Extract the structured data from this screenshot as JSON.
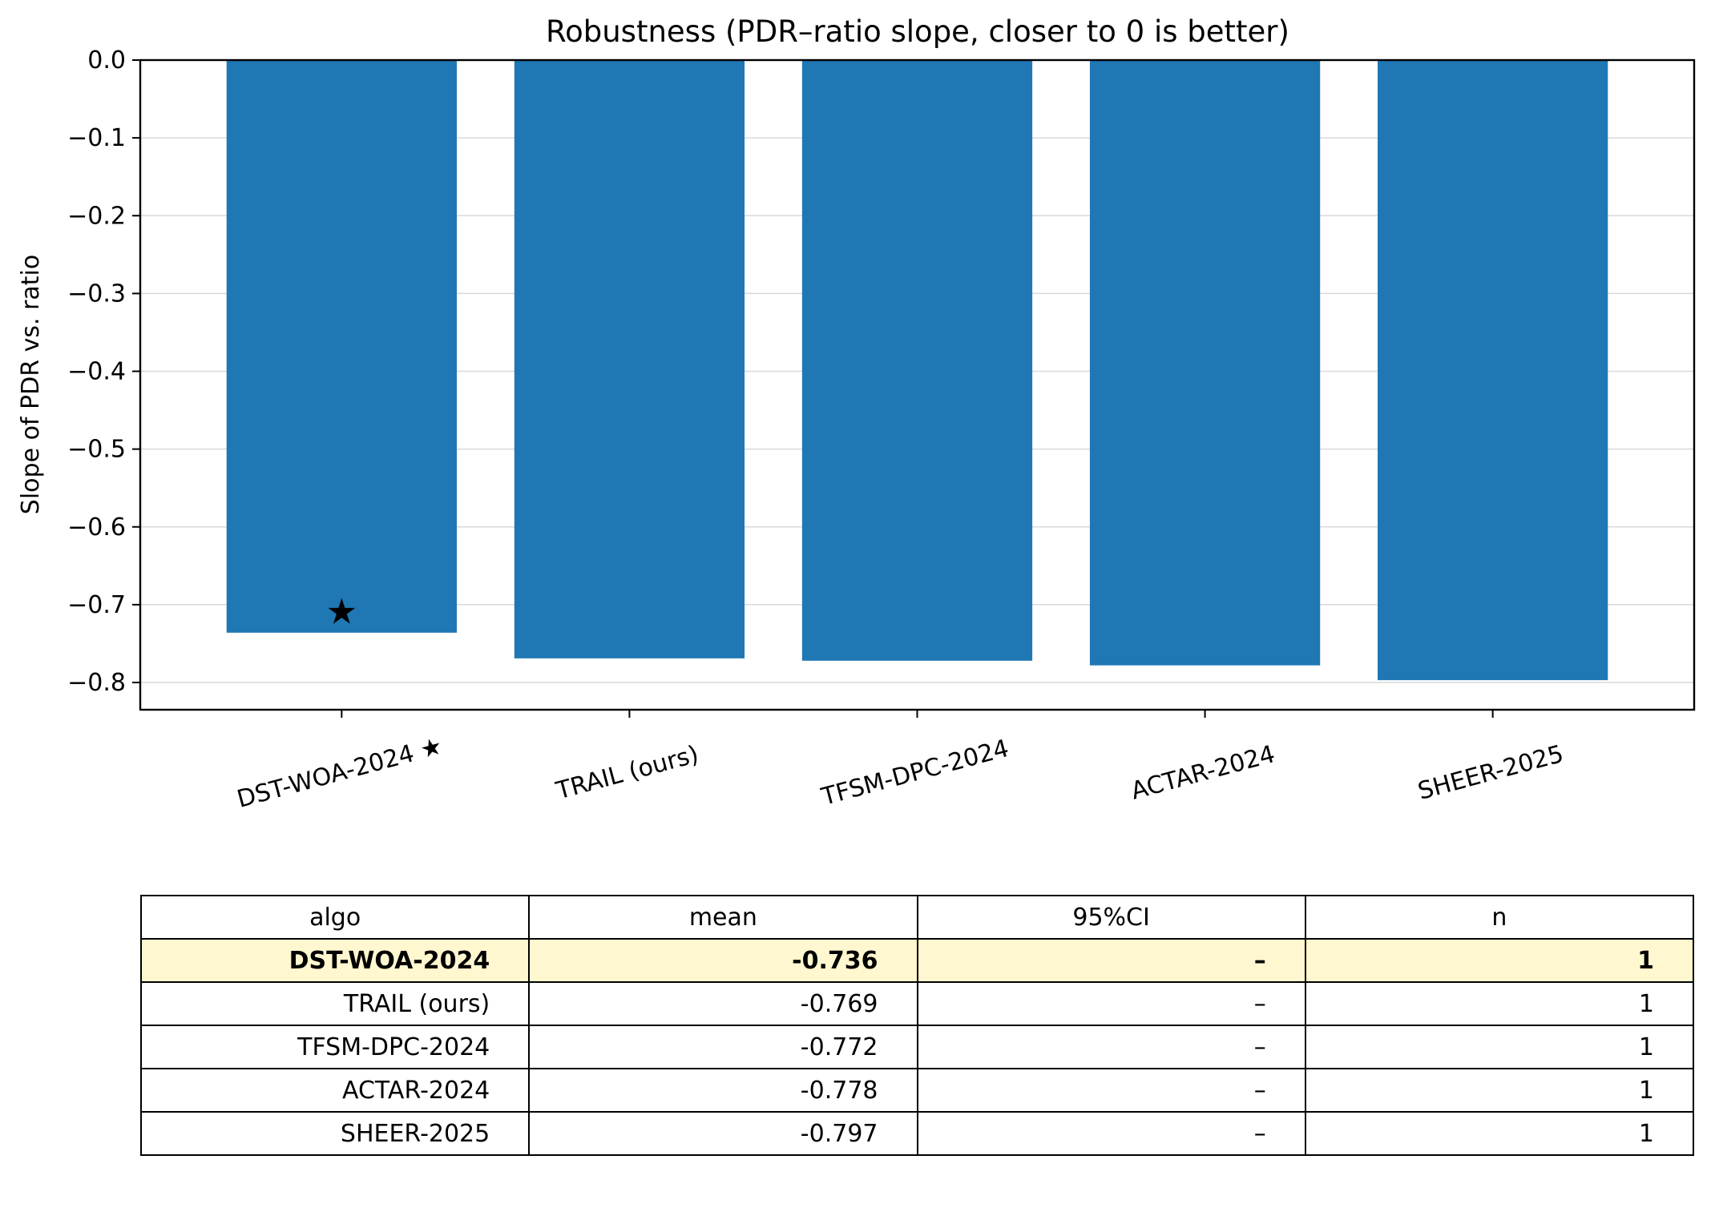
{
  "chart_data": {
    "type": "bar",
    "title": "Robustness (PDR–ratio slope, closer to 0 is better)",
    "xlabel": "",
    "ylabel": "Slope of PDR vs. ratio",
    "categories": [
      "DST-WOA-2024 ★",
      "TRAIL (ours)",
      "TFSM-DPC-2024",
      "ACTAR-2024",
      "SHEER-2025"
    ],
    "values": [
      -0.736,
      -0.769,
      -0.772,
      -0.778,
      -0.797
    ],
    "ylim": [
      -0.835,
      0.0
    ],
    "yticks": [
      0.0,
      -0.1,
      -0.2,
      -0.3,
      -0.4,
      -0.5,
      -0.6,
      -0.7,
      -0.8
    ],
    "ytick_labels": [
      "0.0",
      "−0.1",
      "−0.2",
      "−0.3",
      "−0.4",
      "−0.5",
      "−0.6",
      "−0.7",
      "−0.8"
    ],
    "grid": "y",
    "bar_color": "#1f77b4",
    "marker": {
      "category_index": 0,
      "symbol": "★",
      "y": -0.708
    }
  },
  "table": {
    "headers": [
      "algo",
      "mean",
      "95%CI",
      "n"
    ],
    "rows": [
      {
        "algo": "DST-WOA-2024",
        "mean": "-0.736",
        "ci": "–",
        "n": "1",
        "highlight": true
      },
      {
        "algo": "TRAIL (ours)",
        "mean": "-0.769",
        "ci": "–",
        "n": "1",
        "highlight": false
      },
      {
        "algo": "TFSM-DPC-2024",
        "mean": "-0.772",
        "ci": "–",
        "n": "1",
        "highlight": false
      },
      {
        "algo": "ACTAR-2024",
        "mean": "-0.778",
        "ci": "–",
        "n": "1",
        "highlight": false
      },
      {
        "algo": "SHEER-2025",
        "mean": "-0.797",
        "ci": "–",
        "n": "1",
        "highlight": false
      }
    ],
    "highlight_color": "#fff7cf"
  }
}
